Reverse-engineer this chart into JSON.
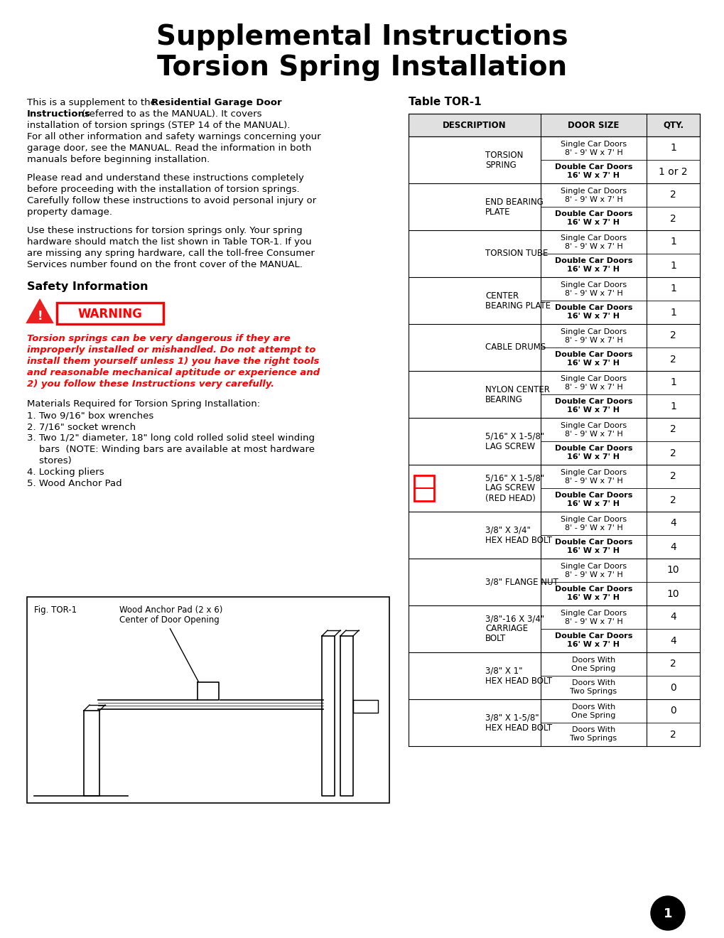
{
  "title_line1": "Supplemental Instructions",
  "title_line2": "Torsion Spring Installation",
  "bg_color": "#ffffff",
  "table_rows": [
    {
      "desc": "TORSION\nSPRING",
      "rows": [
        {
          "door": "Single Car Doors\n8' - 9' W x 7' H",
          "qty": "1"
        },
        {
          "door": "Double Car Doors\n16' W x 7' H",
          "qty": "1 or 2"
        }
      ]
    },
    {
      "desc": "END BEARING\nPLATE",
      "rows": [
        {
          "door": "Single Car Doors\n8' - 9' W x 7' H",
          "qty": "2"
        },
        {
          "door": "Double Car Doors\n16' W x 7' H",
          "qty": "2"
        }
      ]
    },
    {
      "desc": "TORSION TUBE",
      "rows": [
        {
          "door": "Single Car Doors\n8' - 9' W x 7' H",
          "qty": "1"
        },
        {
          "door": "Double Car Doors\n16' W x 7' H",
          "qty": "1"
        }
      ]
    },
    {
      "desc": "CENTER\nBEARING PLATE",
      "rows": [
        {
          "door": "Single Car Doors\n8' - 9' W x 7' H",
          "qty": "1"
        },
        {
          "door": "Double Car Doors\n16' W x 7' H",
          "qty": "1"
        }
      ]
    },
    {
      "desc": "CABLE DRUMS",
      "rows": [
        {
          "door": "Single Car Doors\n8' - 9' W x 7' H",
          "qty": "2"
        },
        {
          "door": "Double Car Doors\n16' W x 7' H",
          "qty": "2"
        }
      ]
    },
    {
      "desc": "NYLON CENTER\nBEARING",
      "rows": [
        {
          "door": "Single Car Doors\n8' - 9' W x 7' H",
          "qty": "1"
        },
        {
          "door": "Double Car Doors\n16' W x 7' H",
          "qty": "1"
        }
      ]
    },
    {
      "desc": "5/16\" X 1-5/8\"\nLAG SCREW",
      "rows": [
        {
          "door": "Single Car Doors\n8' - 9' W x 7' H",
          "qty": "2"
        },
        {
          "door": "Double Car Doors\n16' W x 7' H",
          "qty": "2"
        }
      ]
    },
    {
      "desc": "5/16\" X 1-5/8\"\nLAG SCREW\n(RED HEAD)",
      "rows": [
        {
          "door": "Single Car Doors\n8' - 9' W x 7' H",
          "qty": "2"
        },
        {
          "door": "Double Car Doors\n16' W x 7' H",
          "qty": "2"
        }
      ],
      "red_box": true
    },
    {
      "desc": "3/8\" X 3/4\"\nHEX HEAD BOLT",
      "rows": [
        {
          "door": "Single Car Doors\n8' - 9' W x 7' H",
          "qty": "4"
        },
        {
          "door": "Double Car Doors\n16' W x 7' H",
          "qty": "4"
        }
      ]
    },
    {
      "desc": "3/8\" FLANGE NUT",
      "rows": [
        {
          "door": "Single Car Doors\n8' - 9' W x 7' H",
          "qty": "10"
        },
        {
          "door": "Double Car Doors\n16' W x 7' H",
          "qty": "10"
        }
      ]
    },
    {
      "desc": "3/8\"-16 X 3/4\"\nCARRIAGE\nBOLT",
      "rows": [
        {
          "door": "Single Car Doors\n8' - 9' W x 7' H",
          "qty": "4"
        },
        {
          "door": "Double Car Doors\n16' W x 7' H",
          "qty": "4"
        }
      ]
    },
    {
      "desc": "3/8\" X 1\"\nHEX HEAD BOLT",
      "rows": [
        {
          "door": "Doors With\nOne Spring",
          "qty": "2"
        },
        {
          "door": "Doors With\nTwo Springs",
          "qty": "0"
        }
      ]
    },
    {
      "desc": "3/8\" X 1-5/8\"\nHEX HEAD BOLT",
      "rows": [
        {
          "door": "Doors With\nOne Spring",
          "qty": "0"
        },
        {
          "door": "Doors With\nTwo Springs",
          "qty": "2"
        }
      ]
    }
  ],
  "page_num": "1"
}
